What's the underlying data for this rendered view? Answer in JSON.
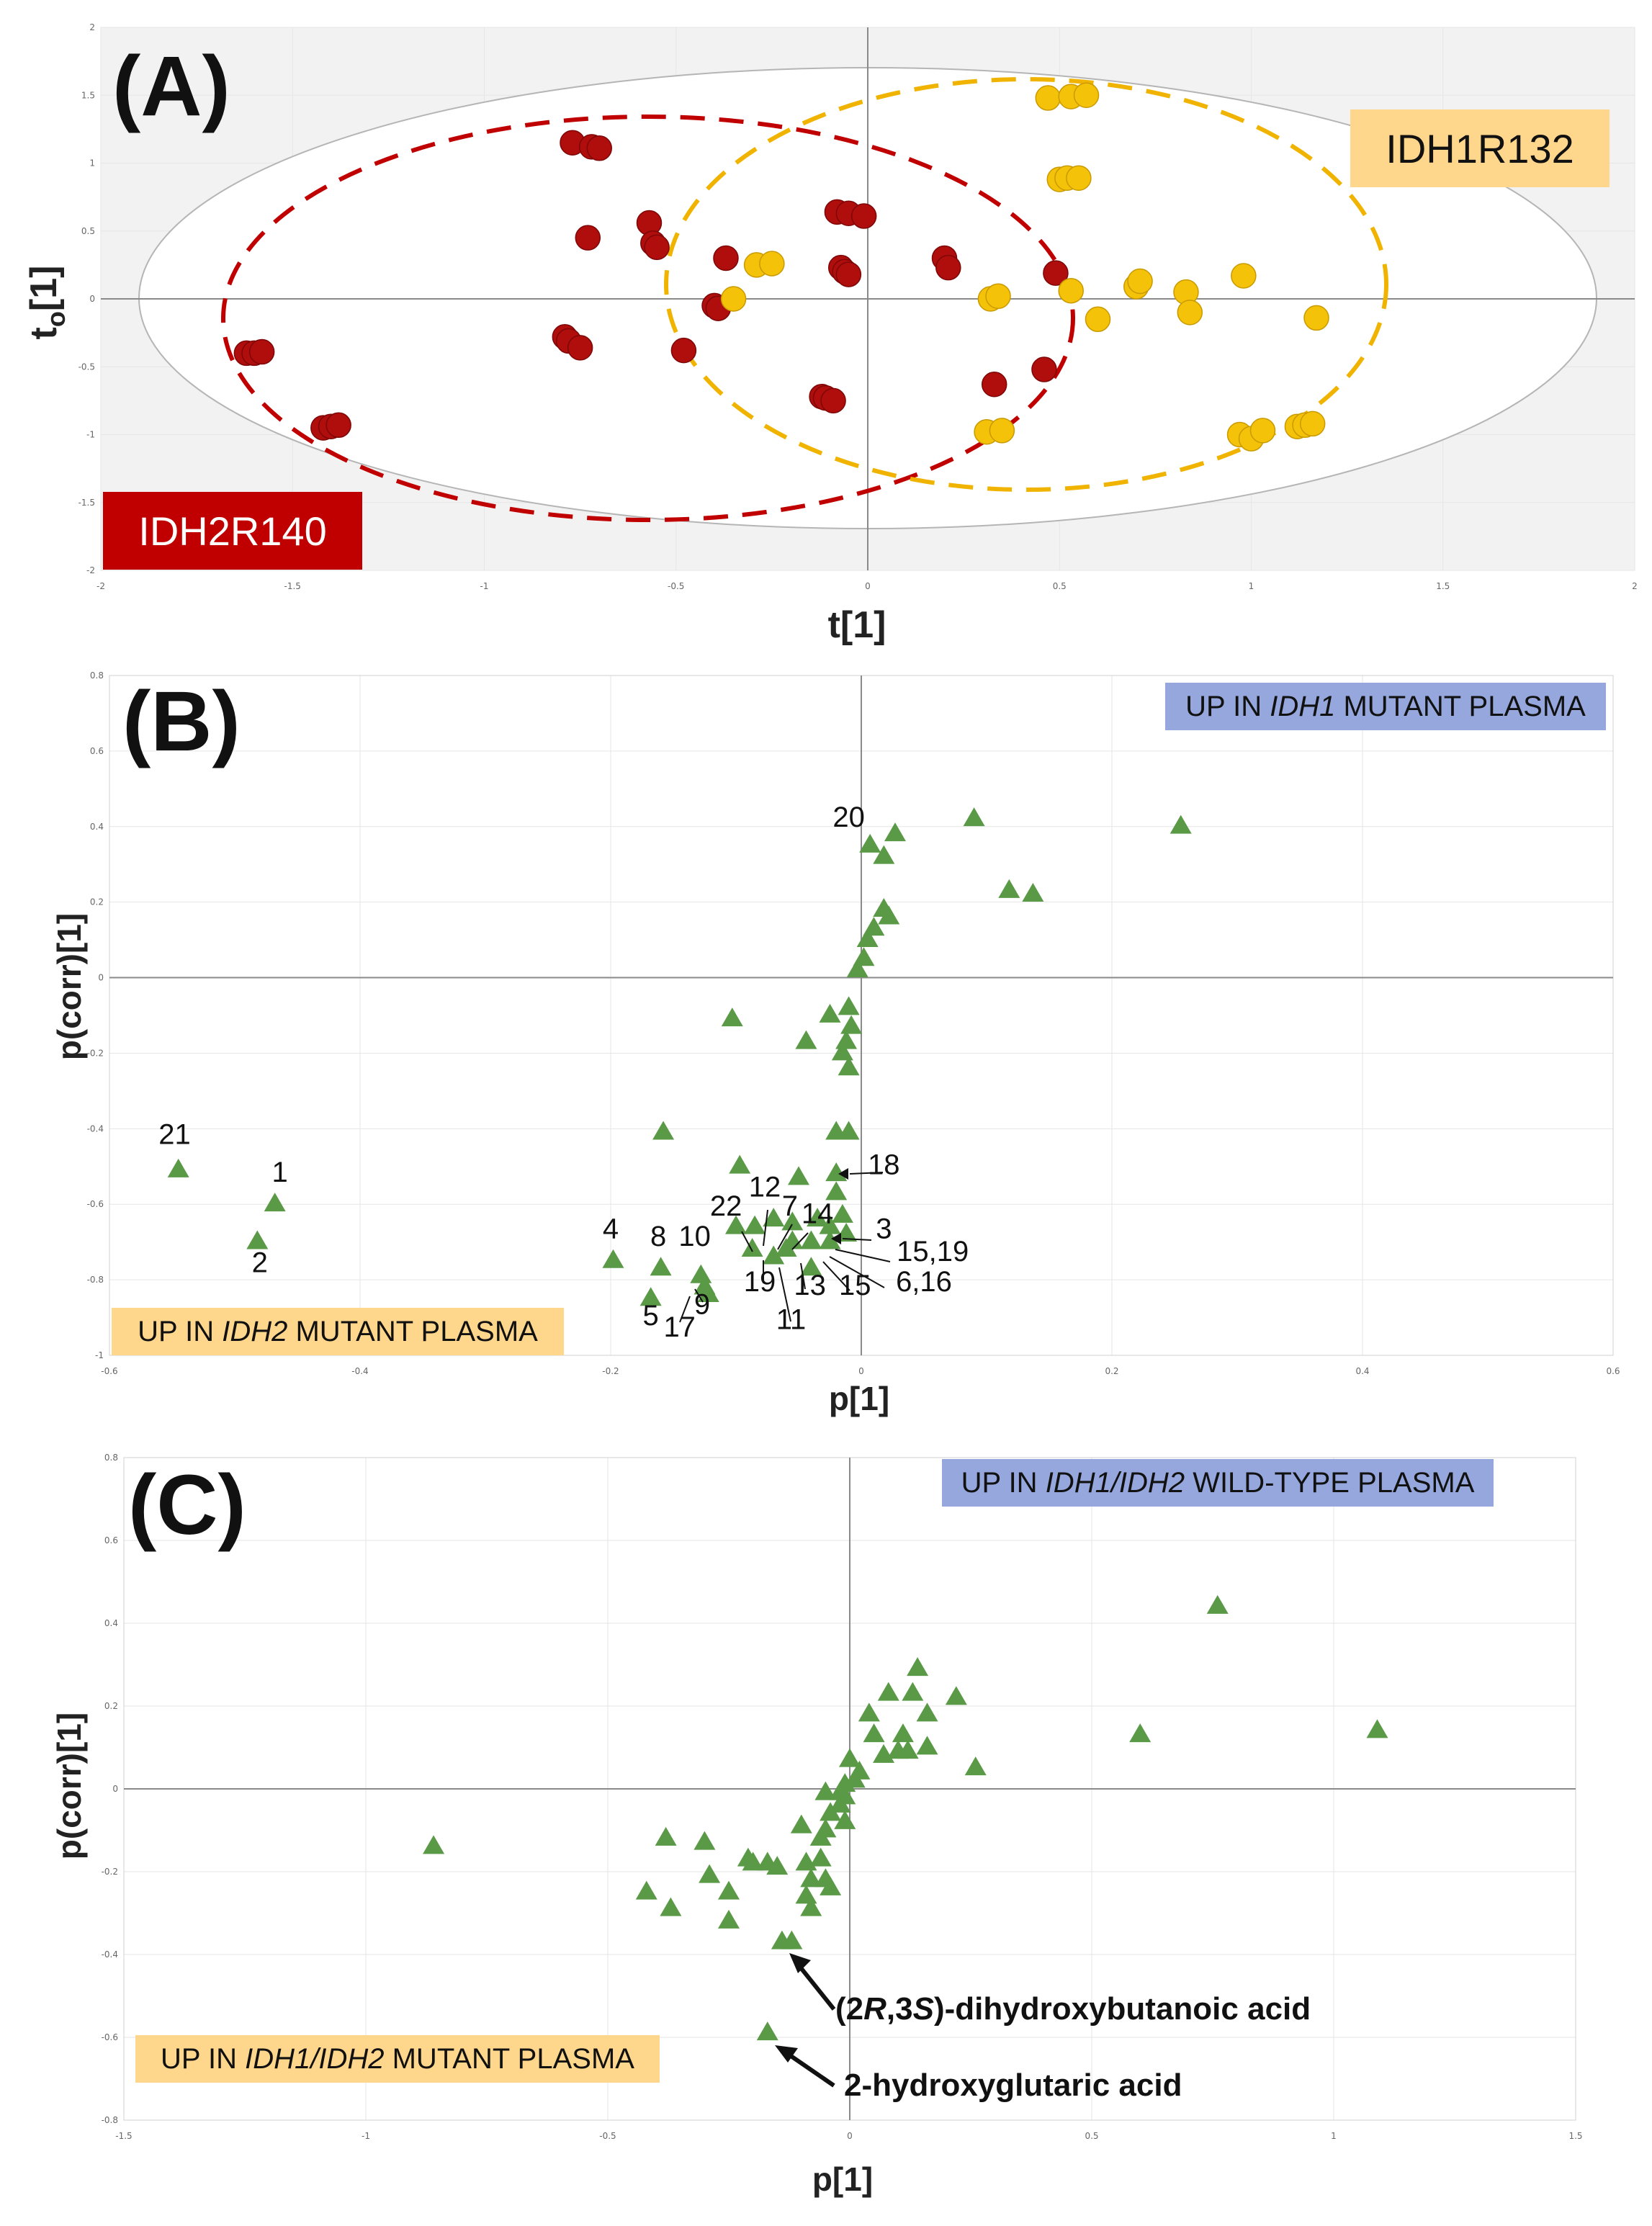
{
  "chart_data": [
    {
      "type": "scatter",
      "panel": "(A)",
      "xlabel": "t[1]",
      "ylabel": "t",
      "ylabel_sub": "o",
      "ylabel_tail": "[1]",
      "xlim": [
        -2,
        2
      ],
      "ylim": [
        -2,
        2
      ],
      "x_ticks": [
        "-2",
        "-1.5",
        "-1",
        "-0.5",
        "0",
        "0.5",
        "1",
        "1.5",
        "2"
      ],
      "y_ticks": [
        "-2",
        "-1.5",
        "-1",
        "-0.5",
        "0",
        "0.5",
        "1",
        "1.5",
        "2"
      ],
      "group_labels": {
        "red": "IDH2R140",
        "yellow": "IDH1R132"
      },
      "colors": {
        "red": "#b00d0d",
        "yellow": "#f5c20a",
        "red_box": "#c00000",
        "yellow_box": "#ffd78c",
        "ellipse_bg": "#f2f2f2"
      },
      "series": [
        {
          "name": "IDH2R140",
          "points": [
            [
              -1.62,
              -0.4
            ],
            [
              -1.6,
              -0.4
            ],
            [
              -1.58,
              -0.39
            ],
            [
              -1.42,
              -0.95
            ],
            [
              -1.4,
              -0.94
            ],
            [
              -1.38,
              -0.93
            ],
            [
              -0.77,
              1.15
            ],
            [
              -0.72,
              1.12
            ],
            [
              -0.7,
              1.11
            ],
            [
              -0.73,
              0.45
            ],
            [
              -0.57,
              0.56
            ],
            [
              -0.56,
              0.41
            ],
            [
              -0.55,
              0.38
            ],
            [
              -0.79,
              -0.28
            ],
            [
              -0.78,
              -0.31
            ],
            [
              -0.75,
              -0.36
            ],
            [
              -0.48,
              -0.38
            ],
            [
              -0.4,
              -0.05
            ],
            [
              -0.39,
              -0.07
            ],
            [
              -0.37,
              0.3
            ],
            [
              -0.08,
              0.64
            ],
            [
              -0.05,
              0.63
            ],
            [
              -0.01,
              0.61
            ],
            [
              -0.07,
              0.23
            ],
            [
              -0.06,
              0.2
            ],
            [
              -0.05,
              0.18
            ],
            [
              0.2,
              0.3
            ],
            [
              0.21,
              0.23
            ],
            [
              -0.12,
              -0.72
            ],
            [
              -0.11,
              -0.73
            ],
            [
              -0.09,
              -0.75
            ],
            [
              0.33,
              -0.63
            ],
            [
              0.46,
              -0.52
            ],
            [
              0.49,
              0.19
            ]
          ]
        },
        {
          "name": "IDH1R132",
          "points": [
            [
              0.47,
              1.48
            ],
            [
              0.53,
              1.49
            ],
            [
              0.57,
              1.5
            ],
            [
              0.5,
              0.88
            ],
            [
              0.52,
              0.89
            ],
            [
              0.55,
              0.89
            ],
            [
              -0.35,
              0.0
            ],
            [
              -0.29,
              0.25
            ],
            [
              -0.25,
              0.26
            ],
            [
              0.32,
              0.0
            ],
            [
              0.34,
              0.02
            ],
            [
              0.53,
              0.06
            ],
            [
              0.6,
              -0.15
            ],
            [
              0.7,
              0.09
            ],
            [
              0.71,
              0.13
            ],
            [
              0.83,
              0.05
            ],
            [
              0.84,
              -0.1
            ],
            [
              0.98,
              0.17
            ],
            [
              1.17,
              -0.14
            ],
            [
              0.31,
              -0.98
            ],
            [
              0.35,
              -0.97
            ],
            [
              0.97,
              -1.0
            ],
            [
              1.0,
              -1.03
            ],
            [
              1.03,
              -0.97
            ],
            [
              1.12,
              -0.94
            ],
            [
              1.14,
              -0.93
            ],
            [
              1.16,
              -0.92
            ]
          ]
        }
      ]
    },
    {
      "type": "scatter",
      "panel": "(B)",
      "xlabel": "p[1]",
      "ylabel": "p(corr)[1]",
      "xlim": [
        -0.6,
        0.6
      ],
      "ylim": [
        -1,
        0.8
      ],
      "x_ticks": [
        "-0.6",
        "-0.4",
        "-0.2",
        "0",
        "0.2",
        "0.4",
        "0.6"
      ],
      "y_ticks": [
        "-1",
        "-0.8",
        "-0.6",
        "-0.4",
        "-0.2",
        "0",
        "0.2",
        "0.4",
        "0.6",
        "0.8"
      ],
      "box_top": {
        "prefix": "UP IN ",
        "italic": "IDH1",
        "suffix": " MUTANT PLASMA"
      },
      "box_bottom": {
        "prefix": "UP IN ",
        "italic": "IDH2",
        "suffix": " MUTANT PLASMA"
      },
      "colors": {
        "marker": "#5a9a47",
        "box_top": "#95a7dc",
        "box_bottom": "#ffd78c"
      },
      "points": [
        [
          -0.545,
          -0.51
        ],
        [
          -0.468,
          -0.6
        ],
        [
          -0.482,
          -0.7
        ],
        [
          0.09,
          0.42
        ],
        [
          0.255,
          0.4
        ],
        [
          0.118,
          0.23
        ],
        [
          0.137,
          0.22
        ],
        [
          0.007,
          0.35
        ],
        [
          0.027,
          0.38
        ],
        [
          0.018,
          0.32
        ],
        [
          0.018,
          0.18
        ],
        [
          0.022,
          0.16
        ],
        [
          0.01,
          0.13
        ],
        [
          0.005,
          0.1
        ],
        [
          0.002,
          0.05
        ],
        [
          -0.003,
          0.02
        ],
        [
          -0.025,
          -0.1
        ],
        [
          -0.103,
          -0.11
        ],
        [
          -0.044,
          -0.17
        ],
        [
          -0.01,
          -0.08
        ],
        [
          -0.008,
          -0.13
        ],
        [
          -0.012,
          -0.17
        ],
        [
          -0.015,
          -0.2
        ],
        [
          -0.01,
          -0.24
        ],
        [
          -0.158,
          -0.41
        ],
        [
          -0.02,
          -0.41
        ],
        [
          -0.01,
          -0.41
        ],
        [
          -0.097,
          -0.5
        ],
        [
          -0.05,
          -0.53
        ],
        [
          -0.02,
          -0.52
        ],
        [
          -0.02,
          -0.57
        ],
        [
          -0.015,
          -0.63
        ],
        [
          -0.1,
          -0.66
        ],
        [
          -0.085,
          -0.66
        ],
        [
          -0.07,
          -0.64
        ],
        [
          -0.055,
          -0.65
        ],
        [
          -0.035,
          -0.64
        ],
        [
          -0.025,
          -0.66
        ],
        [
          -0.012,
          -0.68
        ],
        [
          -0.04,
          -0.7
        ],
        [
          -0.055,
          -0.7
        ],
        [
          -0.06,
          -0.72
        ],
        [
          -0.07,
          -0.74
        ],
        [
          -0.087,
          -0.72
        ],
        [
          -0.04,
          -0.77
        ],
        [
          -0.025,
          -0.7
        ],
        [
          -0.198,
          -0.75
        ],
        [
          -0.16,
          -0.77
        ],
        [
          -0.128,
          -0.79
        ],
        [
          -0.125,
          -0.82
        ],
        [
          -0.122,
          -0.84
        ],
        [
          -0.168,
          -0.85
        ]
      ],
      "labels": [
        {
          "text": "21",
          "x": -0.548,
          "y": -0.44
        },
        {
          "text": "1",
          "x": -0.464,
          "y": -0.54
        },
        {
          "text": "2",
          "x": -0.48,
          "y": -0.78
        },
        {
          "text": "20",
          "x": -0.01,
          "y": 0.4
        },
        {
          "text": "18",
          "x": 0.018,
          "y": -0.52
        },
        {
          "text": "4",
          "x": -0.2,
          "y": -0.69
        },
        {
          "text": "8",
          "x": -0.162,
          "y": -0.71
        },
        {
          "text": "10",
          "x": -0.133,
          "y": -0.71
        },
        {
          "text": "22",
          "x": -0.108,
          "y": -0.63
        },
        {
          "text": "12",
          "x": -0.077,
          "y": -0.58
        },
        {
          "text": "7",
          "x": -0.057,
          "y": -0.63
        },
        {
          "text": "14",
          "x": -0.035,
          "y": -0.65
        },
        {
          "text": "3",
          "x": 0.018,
          "y": -0.69
        },
        {
          "text": "15,19",
          "x": 0.057,
          "y": -0.75
        },
        {
          "text": "6,16",
          "x": 0.05,
          "y": -0.83
        },
        {
          "text": "19",
          "x": -0.081,
          "y": -0.83
        },
        {
          "text": "13",
          "x": -0.041,
          "y": -0.84
        },
        {
          "text": "15",
          "x": -0.005,
          "y": -0.84
        },
        {
          "text": "11",
          "x": -0.056,
          "y": -0.93
        },
        {
          "text": "9",
          "x": -0.127,
          "y": -0.89
        },
        {
          "text": "5",
          "x": -0.168,
          "y": -0.92
        },
        {
          "text": "17",
          "x": -0.145,
          "y": -0.95
        }
      ]
    },
    {
      "type": "scatter",
      "panel": "(C)",
      "xlabel": "p[1]",
      "ylabel": "p(corr)[1]",
      "xlim": [
        -1.5,
        1.5
      ],
      "ylim": [
        -0.8,
        0.8
      ],
      "x_ticks": [
        "-1.5",
        "-1",
        "-0.5",
        "0",
        "0.5",
        "1",
        "1.5"
      ],
      "y_ticks": [
        "-0.8",
        "-0.6",
        "-0.4",
        "-0.2",
        "0",
        "0.2",
        "0.4",
        "0.6",
        "0.8"
      ],
      "box_top": {
        "prefix": "UP IN ",
        "italic": "IDH1/IDH2",
        "suffix": " WILD-TYPE PLASMA"
      },
      "box_bottom": {
        "prefix": "UP IN ",
        "italic": "IDH1/IDH2",
        "suffix": " MUTANT PLASMA"
      },
      "colors": {
        "marker": "#5a9a47",
        "box_top": "#95a7dc",
        "box_bottom": "#ffd78c"
      },
      "annotations": [
        {
          "pre": "(2",
          "i1": "R",
          "mid": ",3",
          "i2": "S",
          "post": ")-dihydroxybutanoic acid"
        },
        {
          "pre": "2-hydroxyglutaric acid",
          "i1": "",
          "mid": "",
          "i2": "",
          "post": ""
        }
      ],
      "points": [
        [
          0.76,
          0.44
        ],
        [
          1.09,
          0.14
        ],
        [
          0.6,
          0.13
        ],
        [
          -0.86,
          -0.14
        ],
        [
          0.14,
          0.29
        ],
        [
          0.13,
          0.23
        ],
        [
          0.08,
          0.23
        ],
        [
          0.22,
          0.22
        ],
        [
          0.04,
          0.18
        ],
        [
          0.16,
          0.18
        ],
        [
          0.11,
          0.13
        ],
        [
          0.05,
          0.13
        ],
        [
          0.1,
          0.09
        ],
        [
          0.12,
          0.09
        ],
        [
          0.16,
          0.1
        ],
        [
          0.26,
          0.05
        ],
        [
          0.07,
          0.08
        ],
        [
          0.0,
          0.07
        ],
        [
          0.02,
          0.04
        ],
        [
          0.01,
          0.02
        ],
        [
          -0.01,
          0.01
        ],
        [
          -0.02,
          -0.01
        ],
        [
          -0.05,
          -0.01
        ],
        [
          -0.01,
          -0.02
        ],
        [
          -0.02,
          -0.04
        ],
        [
          -0.1,
          -0.09
        ],
        [
          -0.04,
          -0.06
        ],
        [
          -0.05,
          -0.1
        ],
        [
          -0.06,
          -0.12
        ],
        [
          -0.01,
          -0.08
        ],
        [
          -0.3,
          -0.13
        ],
        [
          -0.38,
          -0.12
        ],
        [
          -0.21,
          -0.17
        ],
        [
          -0.2,
          -0.18
        ],
        [
          -0.17,
          -0.18
        ],
        [
          -0.09,
          -0.18
        ],
        [
          -0.06,
          -0.17
        ],
        [
          -0.15,
          -0.19
        ],
        [
          -0.29,
          -0.21
        ],
        [
          -0.08,
          -0.22
        ],
        [
          -0.05,
          -0.22
        ],
        [
          -0.04,
          -0.24
        ],
        [
          -0.42,
          -0.25
        ],
        [
          -0.25,
          -0.25
        ],
        [
          -0.09,
          -0.26
        ],
        [
          -0.37,
          -0.29
        ],
        [
          -0.08,
          -0.29
        ],
        [
          -0.25,
          -0.32
        ],
        [
          -0.14,
          -0.37
        ],
        [
          -0.12,
          -0.37
        ],
        [
          -0.17,
          -0.59
        ]
      ]
    }
  ]
}
